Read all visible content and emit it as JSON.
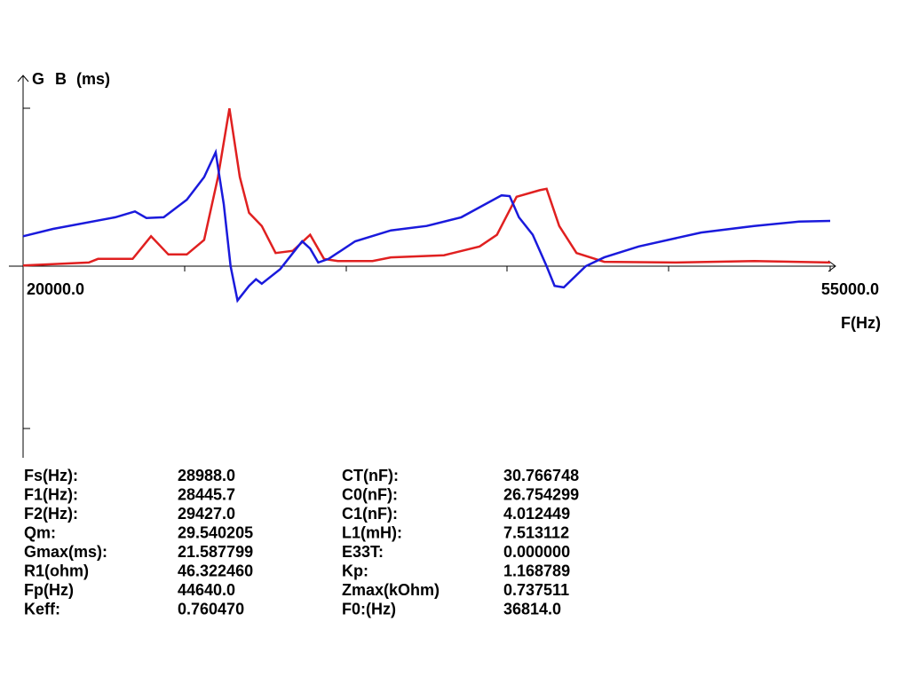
{
  "chart_data": {
    "type": "line",
    "y_label": "(ms)",
    "x_label": "F(Hz)",
    "xlim": [
      20000,
      55000
    ],
    "ylim": [
      -26,
      26
    ],
    "xticks": [
      {
        "value": 20000,
        "label": "20000.0"
      },
      {
        "value": 55000,
        "label": "55000.0"
      }
    ],
    "series": [
      {
        "name": "G",
        "color": "#e02020",
        "x": [
          20000,
          22850,
          23250,
          24750,
          25550,
          26300,
          27100,
          27850,
          28450,
          28950,
          29400,
          29800,
          30350,
          30950,
          31700,
          32450,
          33050,
          33650,
          35150,
          35950,
          38250,
          39800,
          40550,
          41400,
          42400,
          42700,
          43250,
          44000,
          45200,
          48250,
          51700,
          55000
        ],
        "values": [
          0.1,
          0.5,
          1.0,
          1.0,
          4.1,
          1.6,
          1.6,
          3.6,
          12.2,
          21.6,
          12.2,
          7.3,
          5.5,
          1.8,
          2.1,
          4.3,
          1.0,
          0.7,
          0.7,
          1.2,
          1.5,
          2.7,
          4.3,
          9.5,
          10.4,
          10.6,
          5.5,
          1.8,
          0.6,
          0.5,
          0.7,
          0.5
        ]
      },
      {
        "name": "B",
        "color": "#1a1adc",
        "x": [
          20000,
          21300,
          24000,
          24850,
          25350,
          26100,
          27100,
          27850,
          28350,
          28700,
          29000,
          29300,
          29800,
          30100,
          30350,
          31150,
          32100,
          32450,
          32800,
          33250,
          34400,
          35950,
          37500,
          39000,
          40750,
          41100,
          41500,
          42100,
          42700,
          43050,
          43450,
          44400,
          45200,
          46700,
          49400,
          51700,
          53650,
          55000
        ],
        "values": [
          4.1,
          5.1,
          6.7,
          7.5,
          6.6,
          6.7,
          9.1,
          12.2,
          15.6,
          8.5,
          0,
          -4.7,
          -2.7,
          -1.8,
          -2.4,
          -0.4,
          3.4,
          2.4,
          0.5,
          1.0,
          3.4,
          4.9,
          5.5,
          6.7,
          9.7,
          9.6,
          6.7,
          4.3,
          0,
          -2.7,
          -2.9,
          0,
          1.2,
          2.7,
          4.6,
          5.5,
          6.1,
          6.2
        ]
      }
    ]
  },
  "parameters": [
    [
      "Fs(Hz):",
      "28988.0",
      "CT(nF):",
      "30.766748"
    ],
    [
      "F1(Hz):",
      "28445.7",
      "C0(nF):",
      "26.754299"
    ],
    [
      "F2(Hz):",
      "29427.0",
      "C1(nF):",
      "4.012449"
    ],
    [
      "Qm:",
      "29.540205",
      "L1(mH):",
      "7.513112"
    ],
    [
      "Gmax(ms):",
      "21.587799",
      "E33T:",
      "0.000000"
    ],
    [
      "R1(ohm)",
      "46.322460",
      "Kp:",
      "1.168789"
    ],
    [
      "Fp(Hz)",
      "44640.0",
      "Zmax(kOhm)",
      "0.737511"
    ],
    [
      "Keff:",
      "0.760470",
      "F0:(Hz)",
      "36814.0"
    ]
  ]
}
